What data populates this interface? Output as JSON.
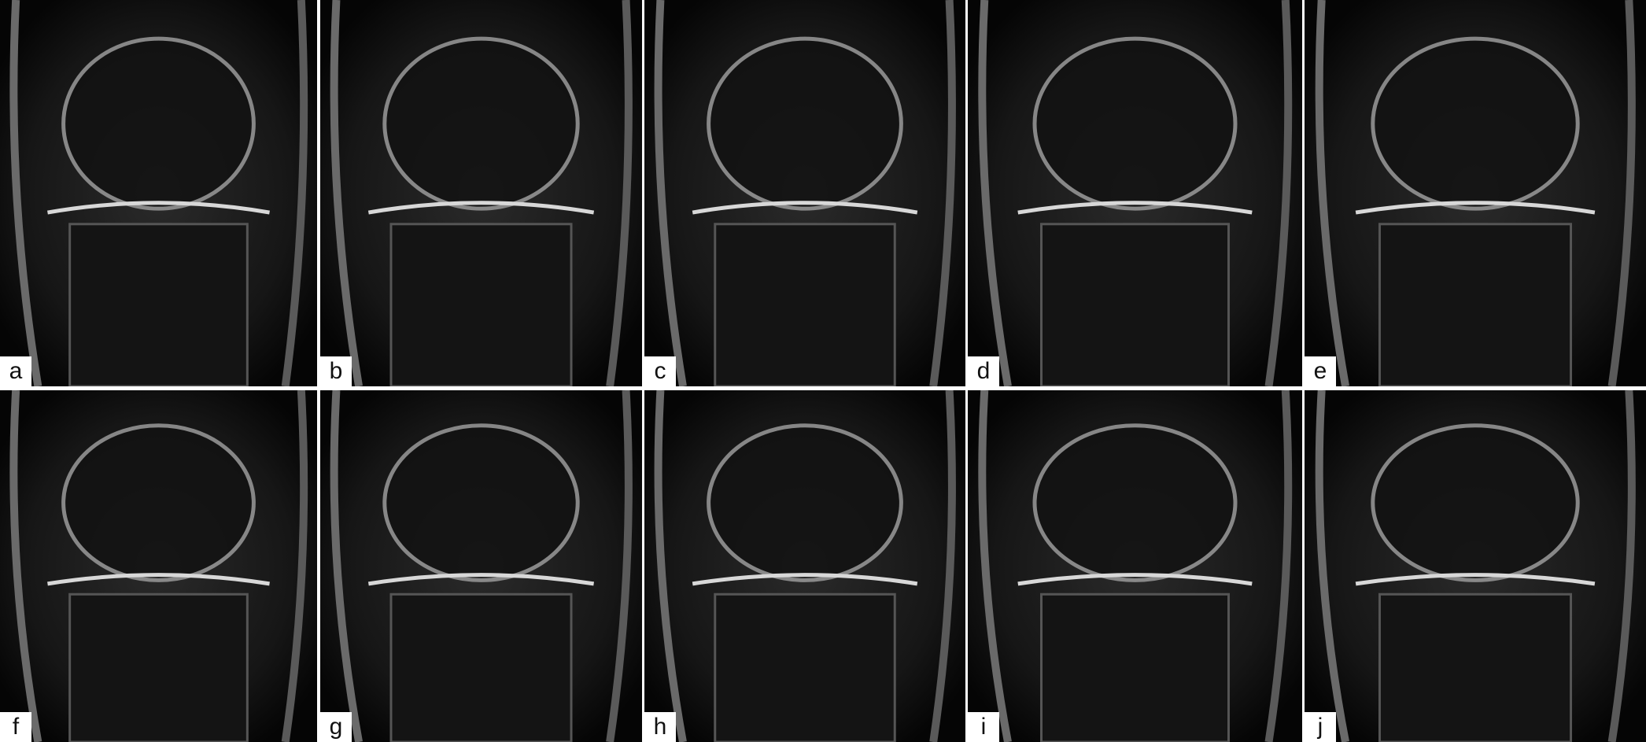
{
  "panels": [
    {
      "label": "a"
    },
    {
      "label": "b"
    },
    {
      "label": "c"
    },
    {
      "label": "d"
    },
    {
      "label": "e"
    },
    {
      "label": "f"
    },
    {
      "label": "g"
    },
    {
      "label": "h"
    },
    {
      "label": "i"
    },
    {
      "label": "j"
    }
  ]
}
